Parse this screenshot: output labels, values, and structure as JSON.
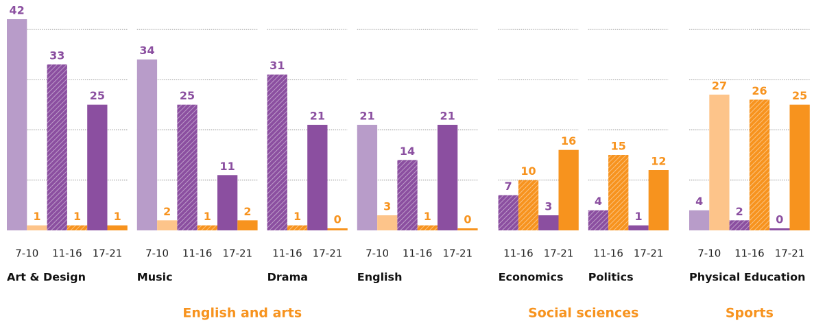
{
  "chart_data": {
    "type": "bar",
    "ylim": [
      0,
      42
    ],
    "yticks": [
      10,
      20,
      30,
      40
    ],
    "grid": true,
    "series_colors": [
      "#8b4fa0",
      "#f7931e"
    ],
    "age_colors": {
      "7-10": [
        "#b89cc9",
        "#fdc48a"
      ],
      "11-16": [
        "#8b4fa0",
        "#f7931e"
      ],
      "17-21": [
        "#8b4fa0",
        "#f7931e"
      ]
    },
    "hatched_age": "11-16",
    "groups": [
      {
        "label": "English and arts",
        "panels": [
          {
            "title": "Art & Design",
            "categories": [
              "7-10",
              "11-16",
              "17-21"
            ],
            "series": [
              {
                "values": [
                  42,
                  33,
                  25
                ]
              },
              {
                "values": [
                  1,
                  1,
                  1
                ]
              }
            ]
          },
          {
            "title": "Music",
            "categories": [
              "7-10",
              "11-16",
              "17-21"
            ],
            "series": [
              {
                "values": [
                  34,
                  25,
                  11
                ]
              },
              {
                "values": [
                  2,
                  1,
                  2
                ]
              }
            ]
          },
          {
            "title": "Drama",
            "categories": [
              "11-16",
              "17-21"
            ],
            "series": [
              {
                "values": [
                  31,
                  21
                ]
              },
              {
                "values": [
                  1,
                  0
                ]
              }
            ]
          },
          {
            "title": "English",
            "categories": [
              "7-10",
              "11-16",
              "17-21"
            ],
            "series": [
              {
                "values": [
                  21,
                  14,
                  21
                ]
              },
              {
                "values": [
                  3,
                  1,
                  0
                ]
              }
            ]
          }
        ]
      },
      {
        "label": "Social sciences",
        "panels": [
          {
            "title": "Economics",
            "categories": [
              "11-16",
              "17-21"
            ],
            "series": [
              {
                "values": [
                  7,
                  3
                ]
              },
              {
                "values": [
                  10,
                  16
                ]
              }
            ]
          },
          {
            "title": "Politics",
            "categories": [
              "11-16",
              "17-21"
            ],
            "series": [
              {
                "values": [
                  4,
                  1
                ]
              },
              {
                "values": [
                  15,
                  12
                ]
              }
            ]
          }
        ]
      },
      {
        "label": "Sports",
        "panels": [
          {
            "title": "Physical Education",
            "categories": [
              "7-10",
              "11-16",
              "17-21"
            ],
            "series": [
              {
                "values": [
                  4,
                  2,
                  0
                ]
              },
              {
                "values": [
                  27,
                  26,
                  25
                ]
              }
            ]
          }
        ]
      }
    ]
  }
}
